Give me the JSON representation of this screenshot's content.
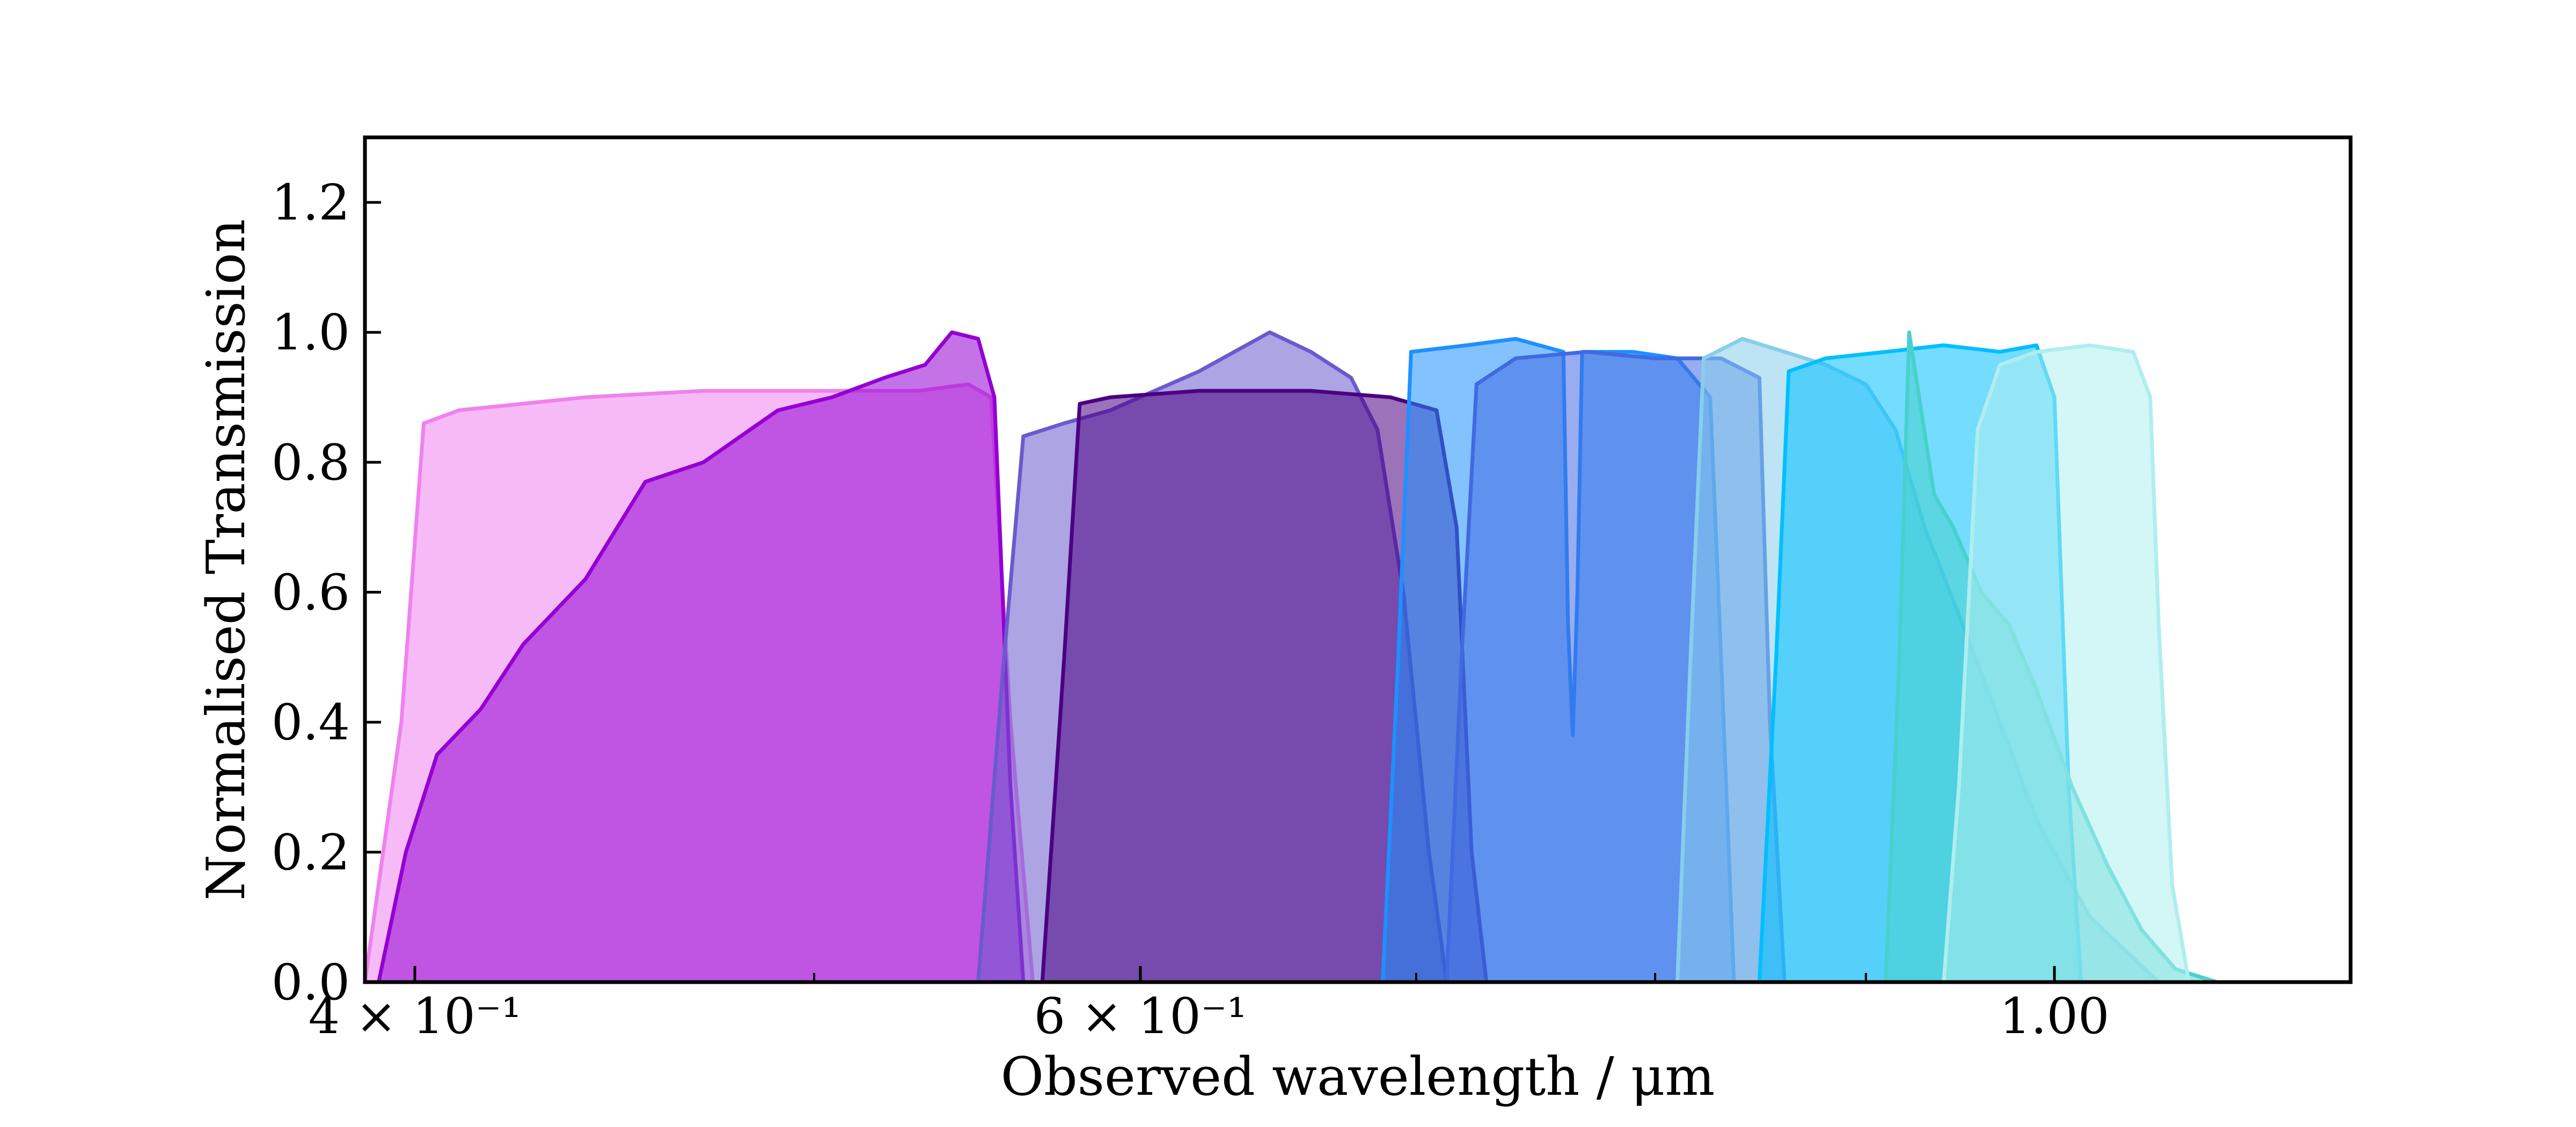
{
  "chart_data": {
    "type": "area",
    "xlabel": "Observed wavelength / μm",
    "ylabel": "Normalised Transmission",
    "xscale": "log",
    "xlim": [
      0.389,
      1.18
    ],
    "ylim": [
      0.0,
      1.3
    ],
    "grid": false,
    "legend": "none",
    "yticks": [
      {
        "value": 0.0,
        "label": "0.0"
      },
      {
        "value": 0.2,
        "label": "0.2"
      },
      {
        "value": 0.4,
        "label": "0.4"
      },
      {
        "value": 0.6,
        "label": "0.6"
      },
      {
        "value": 0.8,
        "label": "0.8"
      },
      {
        "value": 1.0,
        "label": "1.0"
      },
      {
        "value": 1.2,
        "label": "1.2"
      }
    ],
    "xticks_major": [
      {
        "value": 0.4,
        "label": "4 × 10⁻¹"
      },
      {
        "value": 0.6,
        "label": "6 × 10⁻¹"
      },
      {
        "value": 1.0,
        "label": "1.00"
      }
    ],
    "xticks_minor": [
      0.5,
      0.7,
      0.8,
      0.9
    ],
    "series": [
      {
        "color": "#ee82ee",
        "x": [
          0.389,
          0.397,
          0.402,
          0.41,
          0.44,
          0.47,
          0.5,
          0.53,
          0.545,
          0.552,
          0.558,
          0.565
        ],
        "y": [
          0.0,
          0.4,
          0.86,
          0.88,
          0.9,
          0.91,
          0.91,
          0.91,
          0.92,
          0.9,
          0.4,
          0.0
        ]
      },
      {
        "color": "#9400d3",
        "x": [
          0.392,
          0.398,
          0.405,
          0.415,
          0.425,
          0.44,
          0.455,
          0.47,
          0.49,
          0.505,
          0.52,
          0.532,
          0.54,
          0.548,
          0.553,
          0.558,
          0.562
        ],
        "y": [
          0.0,
          0.2,
          0.35,
          0.42,
          0.52,
          0.62,
          0.77,
          0.8,
          0.88,
          0.9,
          0.93,
          0.95,
          1.0,
          0.99,
          0.9,
          0.3,
          0.0
        ]
      },
      {
        "color": "#6a5acd",
        "x": [
          0.548,
          0.556,
          0.562,
          0.575,
          0.59,
          0.62,
          0.645,
          0.66,
          0.675,
          0.685,
          0.695,
          0.705,
          0.712
        ],
        "y": [
          0.0,
          0.5,
          0.84,
          0.86,
          0.88,
          0.94,
          1.0,
          0.97,
          0.93,
          0.85,
          0.6,
          0.2,
          0.0
        ]
      },
      {
        "color": "#4b0082",
        "x": [
          0.568,
          0.575,
          0.58,
          0.59,
          0.62,
          0.66,
          0.69,
          0.708,
          0.716,
          0.722,
          0.728
        ],
        "y": [
          0.0,
          0.5,
          0.89,
          0.9,
          0.91,
          0.91,
          0.9,
          0.88,
          0.7,
          0.2,
          0.0
        ]
      },
      {
        "color": "#1e90ff",
        "x": [
          0.687,
          0.693,
          0.698,
          0.72,
          0.74,
          0.76,
          0.762,
          0.764,
          0.766,
          0.768,
          0.79,
          0.81,
          0.825,
          0.83,
          0.836
        ],
        "y": [
          0.0,
          0.5,
          0.97,
          0.98,
          0.99,
          0.97,
          0.55,
          0.38,
          0.6,
          0.97,
          0.97,
          0.96,
          0.9,
          0.5,
          0.0
        ]
      },
      {
        "color": "#4169e1",
        "x": [
          0.712,
          0.718,
          0.724,
          0.74,
          0.77,
          0.8,
          0.83,
          0.848,
          0.853,
          0.86
        ],
        "y": [
          0.0,
          0.5,
          0.92,
          0.96,
          0.97,
          0.96,
          0.96,
          0.93,
          0.4,
          0.0
        ]
      },
      {
        "color": "#87ceeb",
        "x": [
          0.81,
          0.816,
          0.822,
          0.84,
          0.86,
          0.88,
          0.9,
          0.915,
          0.93,
          0.95,
          0.97,
          0.99,
          1.02,
          1.06
        ],
        "y": [
          0.0,
          0.5,
          0.96,
          0.99,
          0.97,
          0.95,
          0.92,
          0.85,
          0.7,
          0.55,
          0.4,
          0.25,
          0.1,
          0.0
        ]
      },
      {
        "color": "#00bfff",
        "x": [
          0.848,
          0.856,
          0.862,
          0.88,
          0.91,
          0.94,
          0.97,
          0.99,
          1.0,
          1.008,
          1.015
        ],
        "y": [
          0.0,
          0.5,
          0.94,
          0.96,
          0.97,
          0.98,
          0.97,
          0.98,
          0.9,
          0.3,
          0.0
        ]
      },
      {
        "color": "#48d1cc",
        "x": [
          0.91,
          0.917,
          0.922,
          0.935,
          0.945,
          0.96,
          0.975,
          0.99,
          1.01,
          1.03,
          1.05,
          1.07,
          1.095
        ],
        "y": [
          0.0,
          0.5,
          1.0,
          0.75,
          0.7,
          0.6,
          0.55,
          0.45,
          0.3,
          0.18,
          0.08,
          0.02,
          0.0
        ]
      },
      {
        "color": "#afeeee",
        "x": [
          0.94,
          0.948,
          0.958,
          0.97,
          0.99,
          1.02,
          1.045,
          1.055,
          1.06,
          1.068,
          1.078
        ],
        "y": [
          0.0,
          0.3,
          0.85,
          0.95,
          0.97,
          0.98,
          0.97,
          0.9,
          0.55,
          0.15,
          0.0
        ]
      }
    ]
  }
}
